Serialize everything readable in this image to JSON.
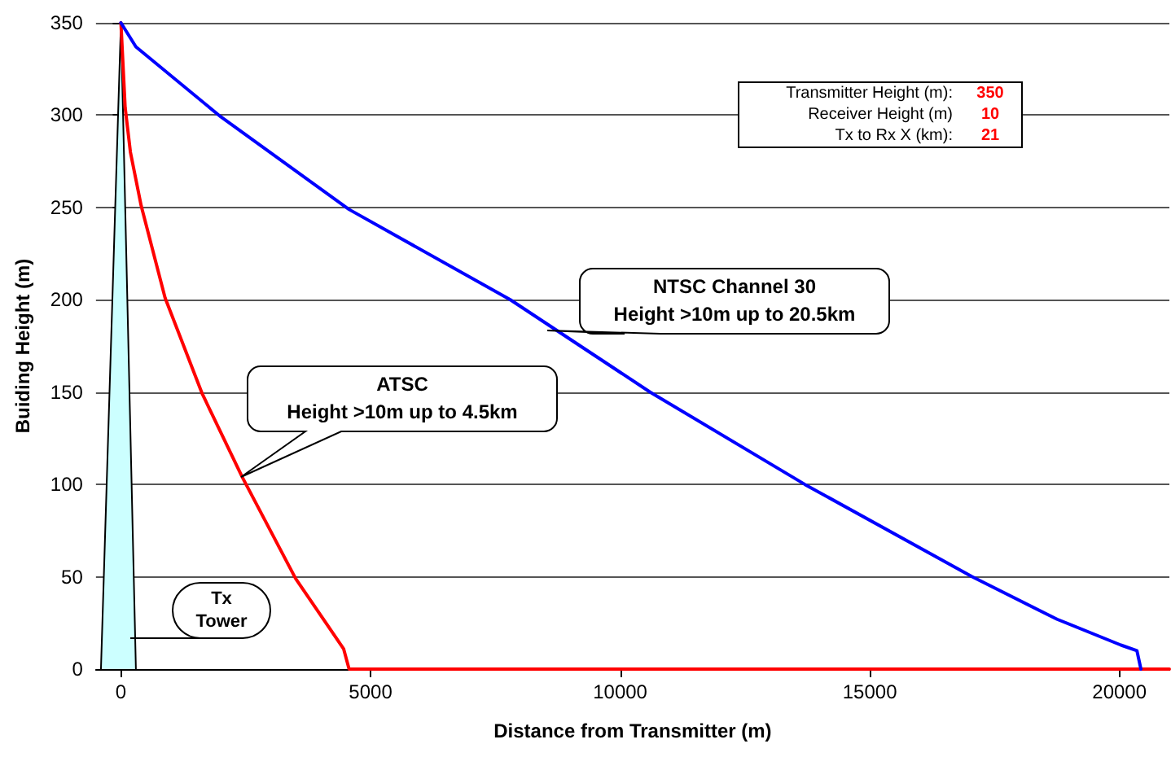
{
  "chart_data": {
    "type": "line",
    "xlabel": "Distance from Transmitter (m)",
    "ylabel": "Buiding Height (m)",
    "xlim": [
      -500,
      21000
    ],
    "xticks": [
      0,
      5000,
      10000,
      15000,
      20000
    ],
    "ylim": [
      0,
      350
    ],
    "yticks": [
      0,
      50,
      100,
      150,
      200,
      250,
      300,
      350
    ],
    "grid": "y",
    "marker": "none",
    "line_style": "solid",
    "series": [
      {
        "type": "area",
        "color": "#ccffff",
        "x": [
          -400,
          0,
          300
        ],
        "values": [
          0,
          350,
          0
        ]
      },
      {
        "color": "#ff0000",
        "x": [
          0,
          85,
          190,
          405,
          885,
          1630,
          2430,
          3500,
          4460,
          4570,
          21000
        ],
        "values": [
          350,
          304,
          280,
          251,
          201,
          149,
          104,
          49,
          11,
          0,
          0
        ]
      },
      {
        "color": "#0000ff",
        "x": [
          0,
          300,
          2005,
          4565,
          7800,
          10600,
          13700,
          17050,
          18750,
          20030,
          20350,
          20430
        ],
        "values": [
          350,
          337,
          299,
          249,
          200,
          150,
          100,
          50,
          27,
          13,
          10,
          0
        ]
      }
    ],
    "annotations": [
      "NTSC Channel 30\nHeight >10m up to 20.5km",
      "ATSC\nHeight >10m up to 4.5km",
      "Tx\nTower",
      "Transmitter Height (m):",
      "350",
      "Receiver Height (m)",
      "10",
      "Tx to Rx X (km):",
      "21"
    ]
  }
}
